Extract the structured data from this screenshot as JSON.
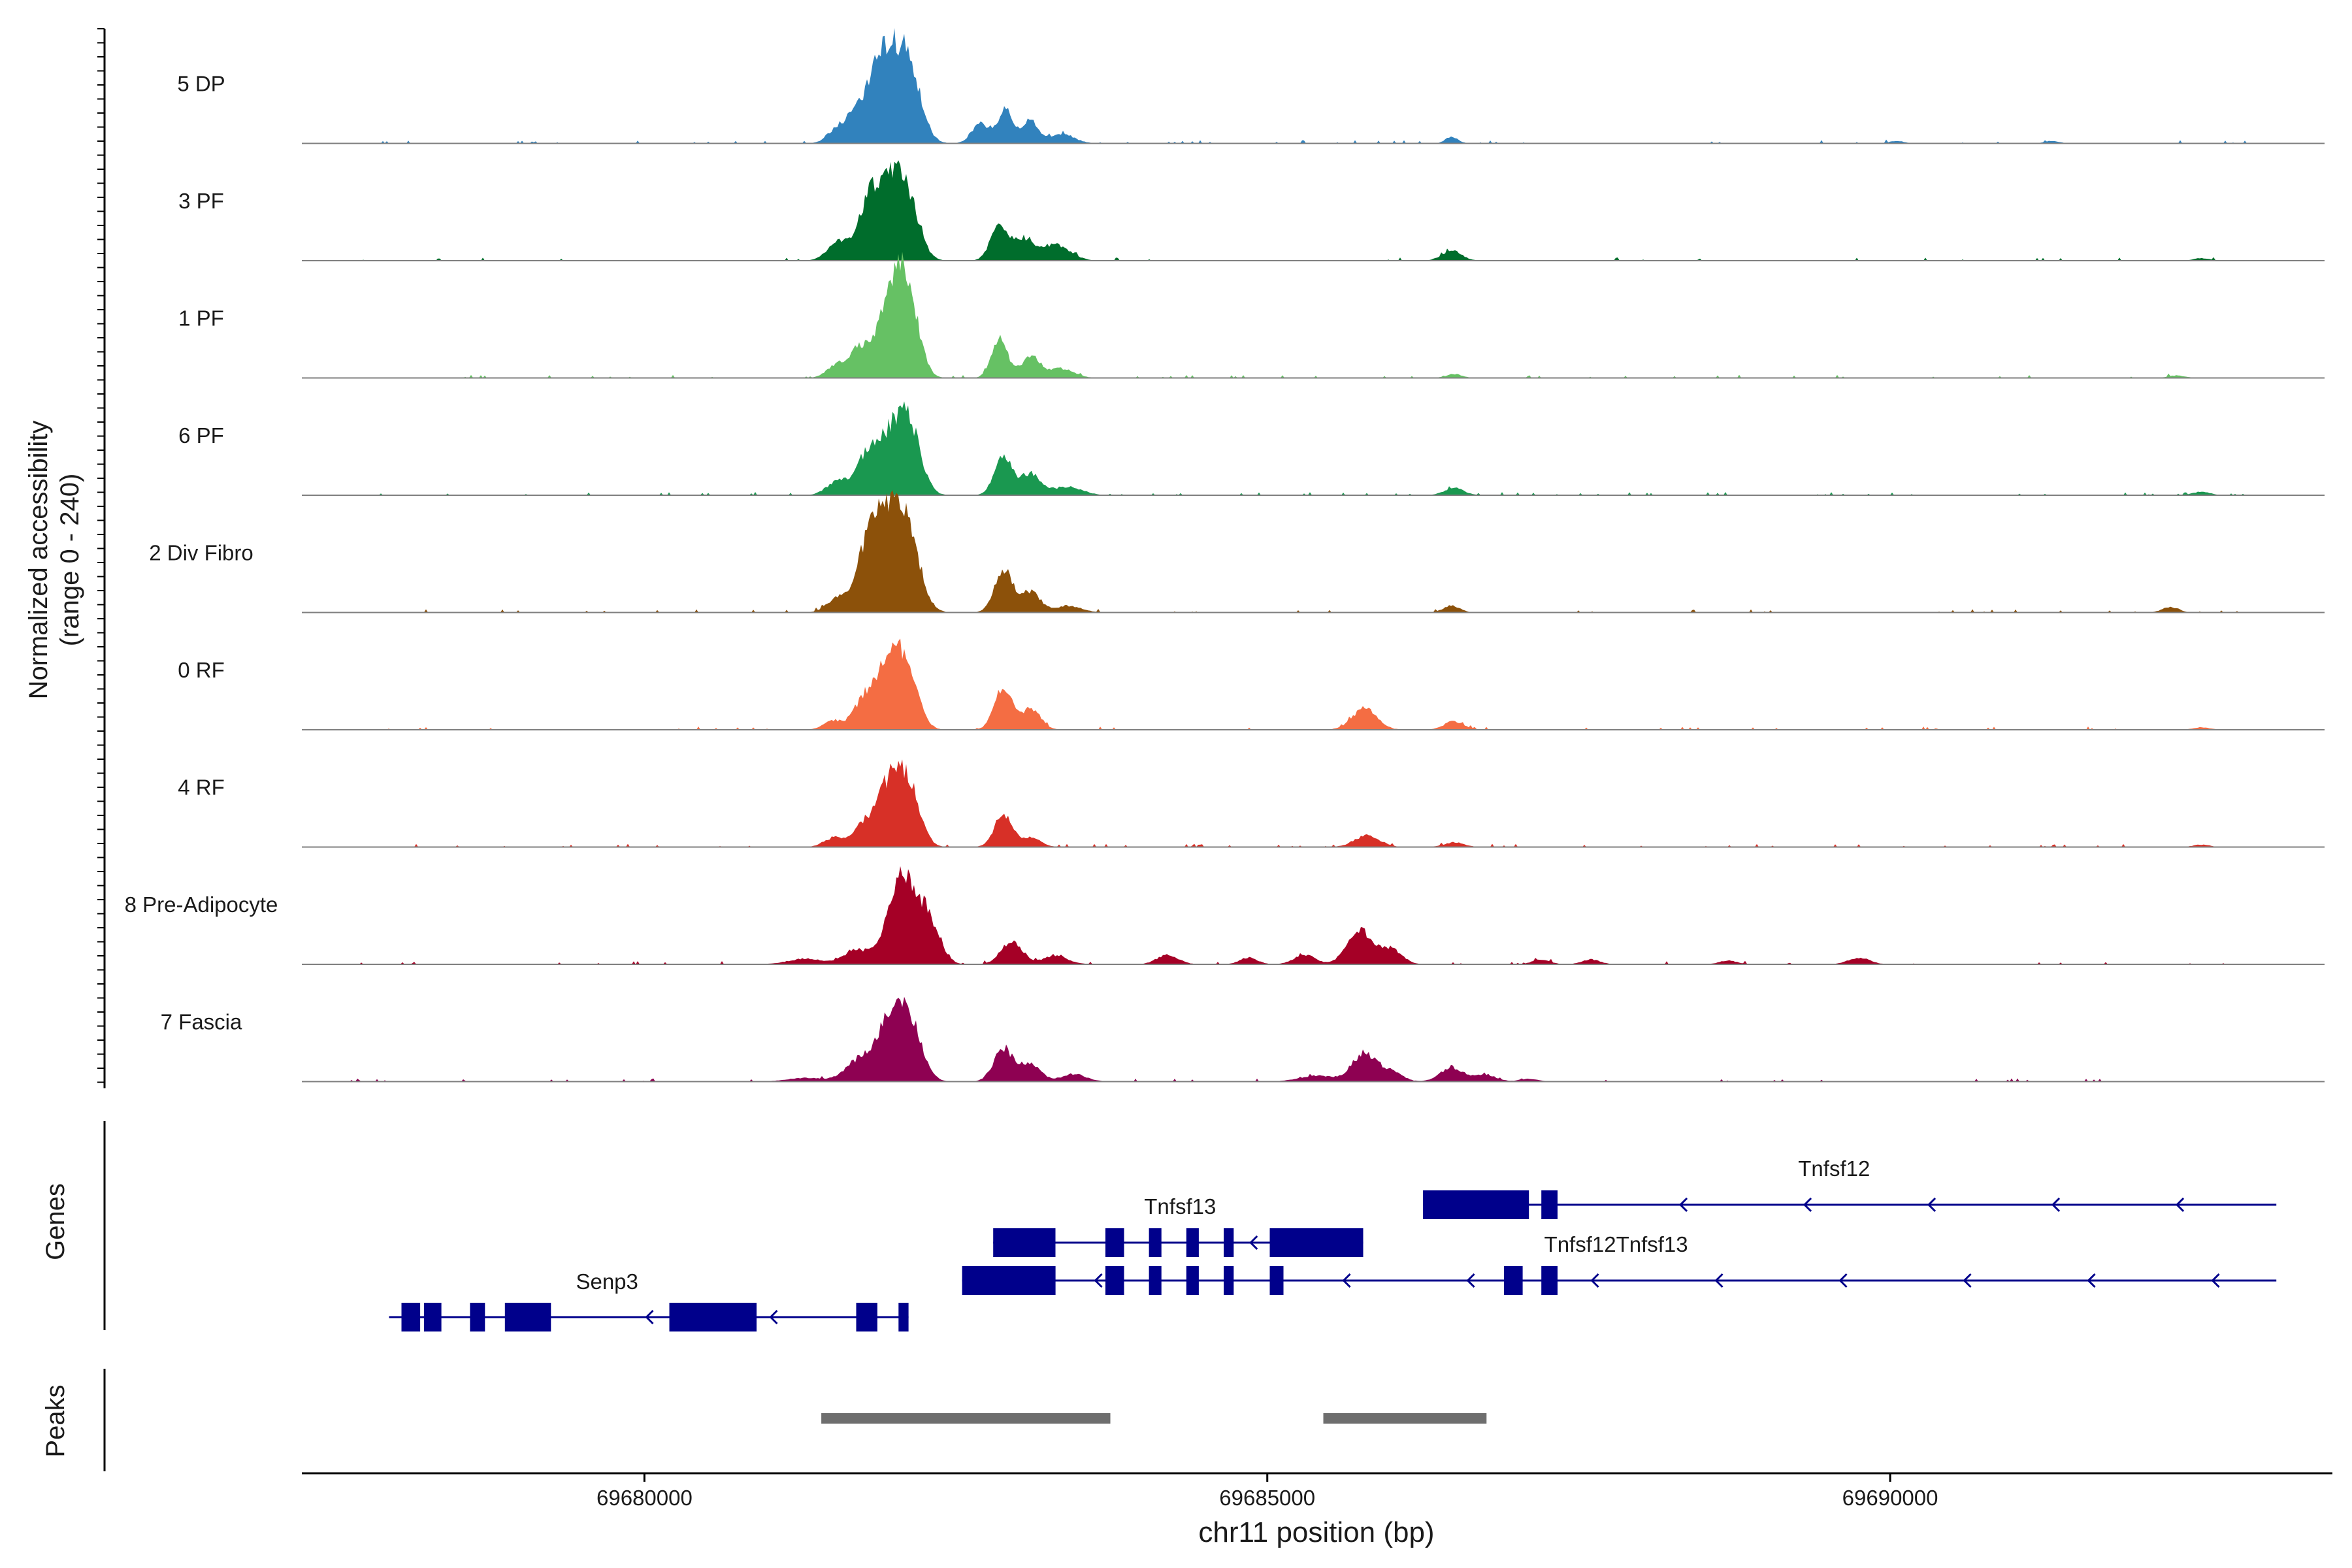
{
  "chart_data": {
    "type": "area",
    "title": "",
    "ylabel_line1": "Normalized accessibility",
    "ylabel_line2": "(range 0 - 240)",
    "yrange": [
      0,
      240
    ],
    "xlabel": "chr11 position (bp)",
    "xlim": [
      69677250,
      69693550
    ],
    "xticks": [
      69680000,
      69685000,
      69690000
    ],
    "xtick_labels": [
      "69680000",
      "69685000",
      "69690000"
    ],
    "tracks_note": "peaks: [center bp, height (0-240), width bp]",
    "tracks": [
      {
        "name": "5 DP",
        "color": "#3182bd",
        "peaks": [
          [
            69681550,
            30,
            110
          ],
          [
            69681700,
            48,
            110
          ],
          [
            69681920,
            190,
            160
          ],
          [
            69682120,
            150,
            140
          ],
          [
            69682700,
            42,
            100
          ],
          [
            69682900,
            70,
            90
          ],
          [
            69683100,
            48,
            90
          ],
          [
            69683350,
            20,
            140
          ],
          [
            69686480,
            14,
            70
          ],
          [
            69690050,
            5,
            80
          ],
          [
            69691300,
            5,
            80
          ]
        ]
      },
      {
        "name": "3 PF",
        "color": "#006d2c",
        "peaks": [
          [
            69681550,
            38,
            120
          ],
          [
            69681780,
            75,
            120
          ],
          [
            69681950,
            160,
            170
          ],
          [
            69682120,
            100,
            130
          ],
          [
            69682850,
            75,
            100
          ],
          [
            69683050,
            45,
            110
          ],
          [
            69683300,
            35,
            160
          ],
          [
            69686480,
            22,
            110
          ],
          [
            69692500,
            5,
            90
          ]
        ]
      },
      {
        "name": "1 PF",
        "color": "#66c164",
        "peaks": [
          [
            69681550,
            30,
            110
          ],
          [
            69681730,
            60,
            100
          ],
          [
            69681990,
            190,
            150
          ],
          [
            69682130,
            120,
            120
          ],
          [
            69682850,
            85,
            90
          ],
          [
            69683100,
            45,
            110
          ],
          [
            69683350,
            20,
            140
          ],
          [
            69686500,
            8,
            90
          ],
          [
            69692300,
            5,
            90
          ]
        ]
      },
      {
        "name": "6 PF",
        "color": "#1a9850",
        "peaks": [
          [
            69681550,
            30,
            120
          ],
          [
            69681780,
            70,
            120
          ],
          [
            69682000,
            140,
            170
          ],
          [
            69682150,
            90,
            120
          ],
          [
            69682880,
            80,
            100
          ],
          [
            69683100,
            45,
            120
          ],
          [
            69683400,
            18,
            160
          ],
          [
            69686500,
            15,
            110
          ],
          [
            69692500,
            8,
            90
          ]
        ]
      },
      {
        "name": "2 Div Fibro",
        "color": "#8c510a",
        "peaks": [
          [
            69681550,
            30,
            120
          ],
          [
            69681750,
            60,
            110
          ],
          [
            69681920,
            215,
            170
          ],
          [
            69682120,
            140,
            140
          ],
          [
            69682880,
            95,
            100
          ],
          [
            69683100,
            45,
            110
          ],
          [
            69683400,
            14,
            150
          ],
          [
            69686480,
            15,
            90
          ],
          [
            69692250,
            12,
            90
          ]
        ]
      },
      {
        "name": "0 RF",
        "color": "#f46d43",
        "peaks": [
          [
            69681520,
            20,
            110
          ],
          [
            69681750,
            50,
            110
          ],
          [
            69681970,
            160,
            160
          ],
          [
            69682130,
            80,
            120
          ],
          [
            69682880,
            90,
            100
          ],
          [
            69683100,
            45,
            110
          ],
          [
            69685780,
            45,
            140
          ],
          [
            69686500,
            18,
            110
          ],
          [
            69692500,
            5,
            90
          ]
        ]
      },
      {
        "name": "4 RF",
        "color": "#d73027",
        "peaks": [
          [
            69681520,
            20,
            110
          ],
          [
            69681750,
            40,
            110
          ],
          [
            69681990,
            150,
            160
          ],
          [
            69682140,
            80,
            120
          ],
          [
            69682880,
            70,
            100
          ],
          [
            69683100,
            20,
            110
          ],
          [
            69685800,
            25,
            140
          ],
          [
            69686500,
            10,
            110
          ],
          [
            69692500,
            5,
            90
          ]
        ]
      },
      {
        "name": "8 Pre-Adipocyte",
        "color": "#a50026",
        "peaks": [
          [
            69681300,
            12,
            200
          ],
          [
            69681700,
            30,
            140
          ],
          [
            69682080,
            190,
            170
          ],
          [
            69682300,
            70,
            120
          ],
          [
            69682950,
            50,
            120
          ],
          [
            69683300,
            18,
            140
          ],
          [
            69684200,
            20,
            120
          ],
          [
            69684850,
            14,
            100
          ],
          [
            69685300,
            20,
            120
          ],
          [
            69685750,
            70,
            150
          ],
          [
            69686000,
            30,
            120
          ],
          [
            69687200,
            10,
            100
          ],
          [
            69687600,
            10,
            100
          ],
          [
            69688700,
            8,
            100
          ],
          [
            69689750,
            14,
            120
          ]
        ]
      },
      {
        "name": "7 Fascia",
        "color": "#8e0152",
        "peaks": [
          [
            69681300,
            8,
            200
          ],
          [
            69681700,
            40,
            140
          ],
          [
            69681990,
            150,
            170
          ],
          [
            69682150,
            80,
            130
          ],
          [
            69682880,
            70,
            110
          ],
          [
            69683100,
            35,
            120
          ],
          [
            69683450,
            16,
            140
          ],
          [
            69685400,
            12,
            200
          ],
          [
            69685780,
            60,
            140
          ],
          [
            69686000,
            20,
            120
          ],
          [
            69686480,
            30,
            130
          ],
          [
            69686750,
            15,
            120
          ],
          [
            69687100,
            6,
            100
          ]
        ]
      }
    ],
    "genes": {
      "label": "Genes",
      "color": "#00008b",
      "transcripts": [
        {
          "name": "Tnfsf12",
          "row": 0,
          "strand": "-",
          "start": 69686250,
          "end": 69693100,
          "exons": [
            [
              69686250,
              69687100
            ],
            [
              69687200,
              69687330
            ]
          ],
          "label_pos": 69689550
        },
        {
          "name": "Tnfsf13",
          "row": 1,
          "strand": "-",
          "start": 69682800,
          "end": 69685770,
          "exons": [
            [
              69682800,
              69683300
            ],
            [
              69683700,
              69683850
            ],
            [
              69684050,
              69684150
            ],
            [
              69684350,
              69684450
            ],
            [
              69684650,
              69684730
            ],
            [
              69685020,
              69685770
            ]
          ],
          "label_pos": 69684300
        },
        {
          "name": "Tnfsf12Tnfsf13",
          "row": 2,
          "strand": "-",
          "start": 69682550,
          "end": 69693100,
          "exons": [
            [
              69682550,
              69683300
            ],
            [
              69683700,
              69683850
            ],
            [
              69684050,
              69684150
            ],
            [
              69684350,
              69684450
            ],
            [
              69684650,
              69684730
            ],
            [
              69685020,
              69685130
            ],
            [
              69686900,
              69687050
            ],
            [
              69687200,
              69687330
            ]
          ],
          "label_pos": 69687800
        },
        {
          "name": "Senp3",
          "row": 3,
          "strand": "-",
          "start": 69677950,
          "end": 69682120,
          "exons": [
            [
              69678050,
              69678200
            ],
            [
              69678230,
              69678370
            ],
            [
              69678600,
              69678720
            ],
            [
              69678880,
              69679250
            ],
            [
              69680200,
              69680900
            ],
            [
              69681700,
              69681870
            ],
            [
              69682040,
              69682120
            ]
          ],
          "label_pos": 69679700
        }
      ]
    },
    "peaks_track": {
      "label": "Peaks",
      "color": "#6e6e6e",
      "regions": [
        [
          69681420,
          69683740
        ],
        [
          69685450,
          69686760
        ]
      ]
    }
  }
}
